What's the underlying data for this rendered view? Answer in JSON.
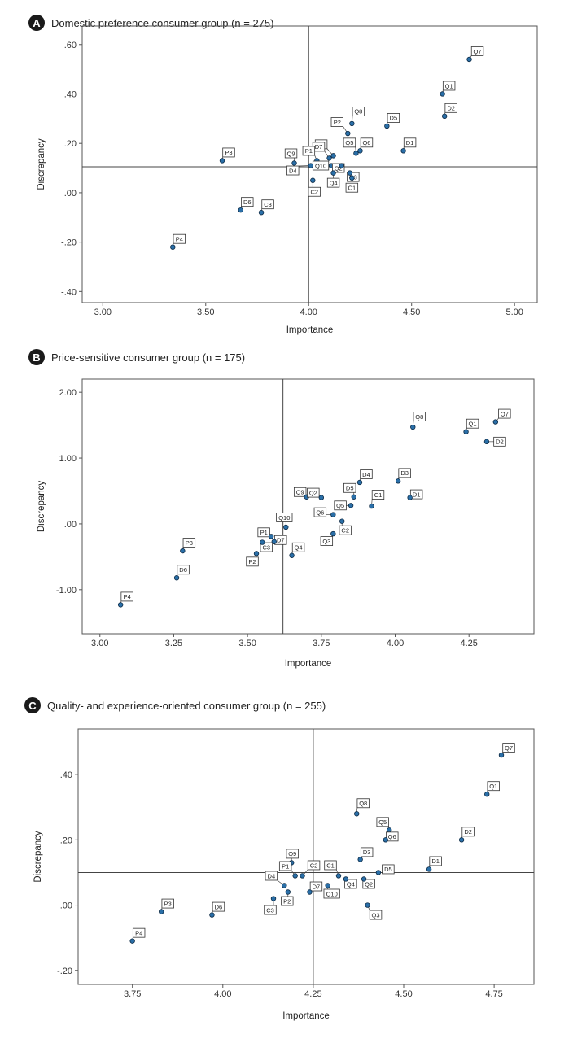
{
  "chart_data": [
    {
      "type": "scatter",
      "badge": "A",
      "title": "Domestic preference consumer group (n = 275)",
      "xlabel": "Importance",
      "ylabel": "Discrepancy",
      "xlim": [
        2.9,
        5.11
      ],
      "ylim": [
        -0.445,
        0.675
      ],
      "xticks": [
        3.0,
        3.5,
        4.0,
        4.5,
        5.0
      ],
      "xtick_labels": [
        "3.00",
        "3.50",
        "4.00",
        "4.50",
        "5.00"
      ],
      "yticks": [
        0.6,
        0.4,
        0.2,
        0.0,
        -0.2,
        -0.4
      ],
      "ytick_labels": [
        ".60",
        ".40",
        ".20",
        ".00",
        "-.20",
        "-.40"
      ],
      "ref_x": 4.0,
      "ref_y": 0.105,
      "points": [
        {
          "label": "Q7",
          "x": 4.78,
          "y": 0.54
        },
        {
          "label": "Q1",
          "x": 4.65,
          "y": 0.4
        },
        {
          "label": "D2",
          "x": 4.66,
          "y": 0.31
        },
        {
          "label": "D5",
          "x": 4.38,
          "y": 0.27
        },
        {
          "label": "Q8",
          "x": 4.21,
          "y": 0.28
        },
        {
          "label": "D1",
          "x": 4.46,
          "y": 0.17
        },
        {
          "label": "P2",
          "x": 4.19,
          "y": 0.24
        },
        {
          "label": "Q6",
          "x": 4.25,
          "y": 0.17
        },
        {
          "label": "Q5",
          "x": 4.23,
          "y": 0.16
        },
        {
          "label": "D3",
          "x": 4.12,
          "y": 0.15
        },
        {
          "label": "D7",
          "x": 4.1,
          "y": 0.14
        },
        {
          "label": "P1",
          "x": 4.04,
          "y": 0.13
        },
        {
          "label": "Q9",
          "x": 3.93,
          "y": 0.12
        },
        {
          "label": "P3",
          "x": 3.58,
          "y": 0.13
        },
        {
          "label": "Q10",
          "x": 4.11,
          "y": 0.11
        },
        {
          "label": "Q2",
          "x": 4.16,
          "y": 0.11
        },
        {
          "label": "D4",
          "x": 4.01,
          "y": 0.11
        },
        {
          "label": "Q3",
          "x": 4.2,
          "y": 0.08
        },
        {
          "label": "C1",
          "x": 4.21,
          "y": 0.06
        },
        {
          "label": "Q4",
          "x": 4.12,
          "y": 0.08
        },
        {
          "label": "C2",
          "x": 4.02,
          "y": 0.05
        },
        {
          "label": "D6",
          "x": 3.67,
          "y": -0.07
        },
        {
          "label": "C3",
          "x": 3.77,
          "y": -0.08
        },
        {
          "label": "P4",
          "x": 3.34,
          "y": -0.22
        }
      ]
    },
    {
      "type": "scatter",
      "badge": "B",
      "title": "Price-sensitive consumer group (n = 175)",
      "xlabel": "Importance",
      "ylabel": "Discrepancy",
      "xlim": [
        2.94,
        4.47
      ],
      "ylim": [
        -1.67,
        2.2
      ],
      "xticks": [
        3.0,
        3.25,
        3.5,
        3.75,
        4.0,
        4.25
      ],
      "xtick_labels": [
        "3.00",
        "3.25",
        "3.50",
        "3.75",
        "4.00",
        "4.25"
      ],
      "yticks": [
        2.0,
        1.0,
        0.0,
        -1.0
      ],
      "ytick_labels": [
        "2.00",
        "1.00",
        ".00",
        "-1.00"
      ],
      "ref_x": 3.62,
      "ref_y": 0.5,
      "points": [
        {
          "label": "Q7",
          "x": 4.34,
          "y": 1.55
        },
        {
          "label": "Q1",
          "x": 4.24,
          "y": 1.4
        },
        {
          "label": "D2",
          "x": 4.31,
          "y": 1.25
        },
        {
          "label": "Q8",
          "x": 4.06,
          "y": 1.47
        },
        {
          "label": "D3",
          "x": 4.01,
          "y": 0.65
        },
        {
          "label": "D4",
          "x": 3.88,
          "y": 0.63
        },
        {
          "label": "D1",
          "x": 4.05,
          "y": 0.4
        },
        {
          "label": "C1",
          "x": 3.92,
          "y": 0.27
        },
        {
          "label": "D5",
          "x": 3.86,
          "y": 0.41
        },
        {
          "label": "Q5",
          "x": 3.85,
          "y": 0.28
        },
        {
          "label": "Q9",
          "x": 3.7,
          "y": 0.41
        },
        {
          "label": "Q2",
          "x": 3.75,
          "y": 0.4
        },
        {
          "label": "Q6",
          "x": 3.79,
          "y": 0.14
        },
        {
          "label": "C2",
          "x": 3.82,
          "y": 0.04
        },
        {
          "label": "Q10",
          "x": 3.63,
          "y": -0.05
        },
        {
          "label": "Q3",
          "x": 3.79,
          "y": -0.15
        },
        {
          "label": "Q4",
          "x": 3.65,
          "y": -0.48
        },
        {
          "label": "P1",
          "x": 3.58,
          "y": -0.19
        },
        {
          "label": "D7",
          "x": 3.59,
          "y": -0.27
        },
        {
          "label": "C3",
          "x": 3.55,
          "y": -0.28
        },
        {
          "label": "P2",
          "x": 3.53,
          "y": -0.45
        },
        {
          "label": "P3",
          "x": 3.28,
          "y": -0.41
        },
        {
          "label": "D6",
          "x": 3.26,
          "y": -0.82
        },
        {
          "label": "P4",
          "x": 3.07,
          "y": -1.23
        }
      ]
    },
    {
      "type": "scatter",
      "badge": "C",
      "title": "Quality- and experience-oriented consumer group (n = 255)",
      "xlabel": "Importance",
      "ylabel": "Discrepancy",
      "xlim": [
        3.6,
        4.86
      ],
      "ylim": [
        -0.243,
        0.54
      ],
      "xticks": [
        3.75,
        4.0,
        4.25,
        4.5,
        4.75
      ],
      "xtick_labels": [
        "3.75",
        "4.00",
        "4.25",
        "4.50",
        "4.75"
      ],
      "yticks": [
        0.4,
        0.2,
        0.0,
        -0.2
      ],
      "ytick_labels": [
        ".40",
        ".20",
        ".00",
        "-.20"
      ],
      "ref_x": 4.25,
      "ref_y": 0.1,
      "points": [
        {
          "label": "Q7",
          "x": 4.77,
          "y": 0.46
        },
        {
          "label": "Q1",
          "x": 4.73,
          "y": 0.34
        },
        {
          "label": "D2",
          "x": 4.66,
          "y": 0.2
        },
        {
          "label": "Q8",
          "x": 4.37,
          "y": 0.28
        },
        {
          "label": "Q5",
          "x": 4.46,
          "y": 0.23
        },
        {
          "label": "Q6",
          "x": 4.45,
          "y": 0.2
        },
        {
          "label": "D1",
          "x": 4.57,
          "y": 0.11
        },
        {
          "label": "D3",
          "x": 4.38,
          "y": 0.14
        },
        {
          "label": "D5",
          "x": 4.43,
          "y": 0.1
        },
        {
          "label": "Q9",
          "x": 4.19,
          "y": 0.13
        },
        {
          "label": "C2",
          "x": 4.22,
          "y": 0.09
        },
        {
          "label": "P1",
          "x": 4.2,
          "y": 0.09
        },
        {
          "label": "C1",
          "x": 4.32,
          "y": 0.09
        },
        {
          "label": "D4",
          "x": 4.17,
          "y": 0.06
        },
        {
          "label": "Q4",
          "x": 4.34,
          "y": 0.08
        },
        {
          "label": "Q2",
          "x": 4.39,
          "y": 0.08
        },
        {
          "label": "D7",
          "x": 4.24,
          "y": 0.04
        },
        {
          "label": "Q10",
          "x": 4.29,
          "y": 0.06
        },
        {
          "label": "P2",
          "x": 4.18,
          "y": 0.04
        },
        {
          "label": "C3",
          "x": 4.14,
          "y": 0.02
        },
        {
          "label": "Q3",
          "x": 4.4,
          "y": 0.0
        },
        {
          "label": "P3",
          "x": 3.83,
          "y": -0.02
        },
        {
          "label": "D6",
          "x": 3.97,
          "y": -0.03
        },
        {
          "label": "P4",
          "x": 3.75,
          "y": -0.11
        }
      ]
    }
  ]
}
